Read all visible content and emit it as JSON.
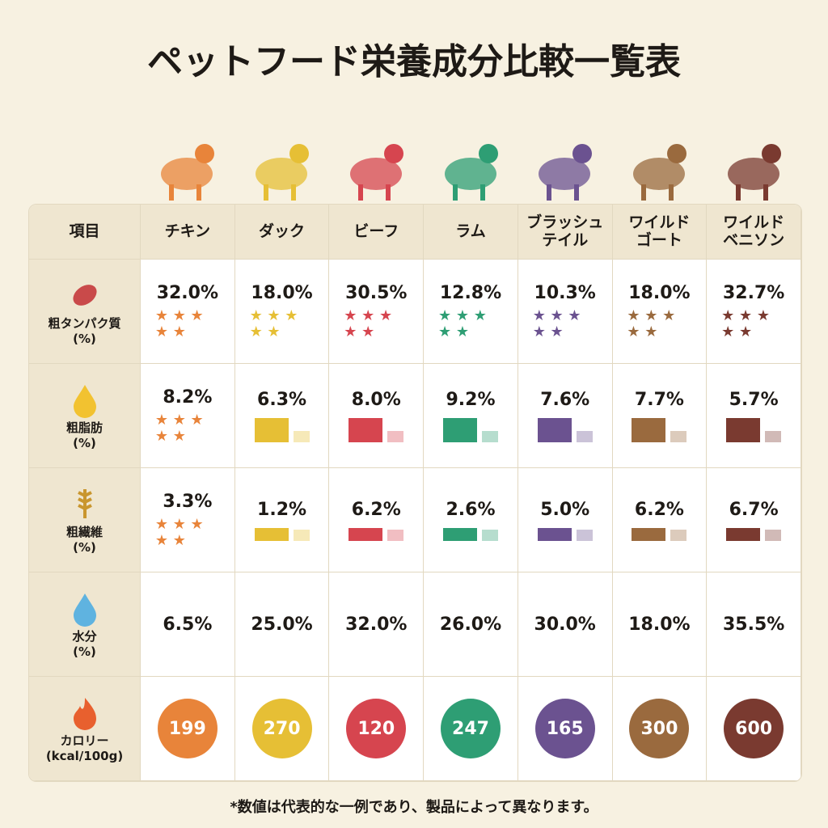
{
  "title": "ペットフード栄養成分比較一覧表",
  "table": {
    "header": [
      "項目",
      "チキン",
      "ダック",
      "ビーフ",
      "ラム",
      "ブラッシュ\nテイル",
      "ワイルド\nゴート",
      "ワイルド\nベニソン"
    ],
    "colors": [
      "#e8843a",
      "#e6bf35",
      "#d6454f",
      "#2e9e74",
      "#6b5290",
      "#9a6a3e",
      "#7a3a30"
    ],
    "rows": [
      {
        "label": "粗タンパク質",
        "unit": "(%)",
        "cells": [
          "32.0%",
          "18.0%",
          "30.5%",
          "12.8%",
          "10.3%",
          "18.0%",
          "32.7%"
        ]
      },
      {
        "label": "粗脂肪",
        "unit": "(%)",
        "cells": [
          "8.2%",
          "6.3%",
          "8.0%",
          "9.2%",
          "7.6%",
          "7.7%",
          "5.7%"
        ]
      },
      {
        "label": "粗繊維",
        "unit": "(%)",
        "cells": [
          "3.3%",
          "1.2%",
          "6.2%",
          "2.6%",
          "5.0%",
          "6.2%",
          "6.7%"
        ]
      },
      {
        "label": "水分",
        "unit": "(%)",
        "cells": [
          "6.5%",
          "25.0%",
          "32.0%",
          "26.0%",
          "30.0%",
          "18.0%",
          "35.5%"
        ]
      },
      {
        "label": "カロリー",
        "unit": "(kcal/100g)",
        "cells": [
          "199",
          "270",
          "120",
          "247",
          "165",
          "300",
          "600"
        ]
      }
    ]
  },
  "footnote": "*数値は代表的な一例であり、製品によって異なります。"
}
